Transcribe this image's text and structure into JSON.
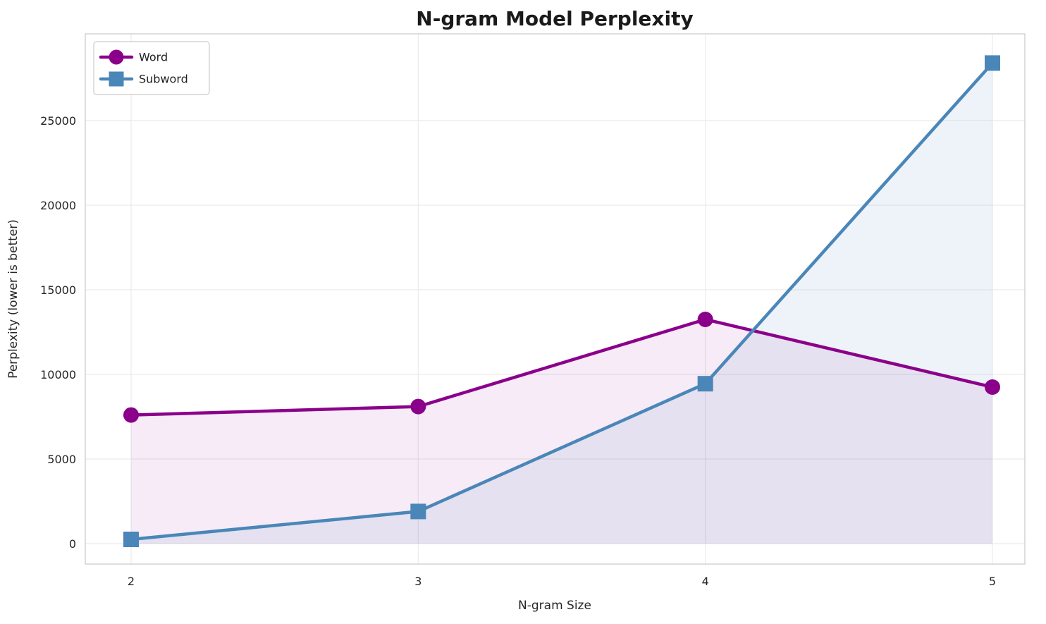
{
  "chart_data": {
    "type": "line",
    "title": "N-gram Model Perplexity",
    "xlabel": "N-gram Size",
    "ylabel": "Perplexity (lower is better)",
    "x": [
      2,
      3,
      4,
      5
    ],
    "x_tick_labels": [
      "2",
      "3",
      "4",
      "5"
    ],
    "yticks": [
      0,
      5000,
      10000,
      15000,
      20000,
      25000
    ],
    "ylim": [
      0,
      28500
    ],
    "grid": true,
    "area_fill_to_zero": true,
    "legend_position": "upper left",
    "series": [
      {
        "name": "Word",
        "marker": "circle",
        "color": "#8B008B",
        "fill_opacity": 0.08,
        "values": [
          7600,
          8100,
          13250,
          9250
        ]
      },
      {
        "name": "Subword",
        "marker": "square",
        "color": "#4A86B8",
        "fill_opacity": 0.1,
        "values": [
          250,
          1900,
          9450,
          28400
        ]
      }
    ],
    "colors": {
      "grid": "#ebebeb",
      "spine": "#cccccc",
      "legend_border": "#cbcbcb",
      "legend_bg": "#ffffff"
    }
  }
}
